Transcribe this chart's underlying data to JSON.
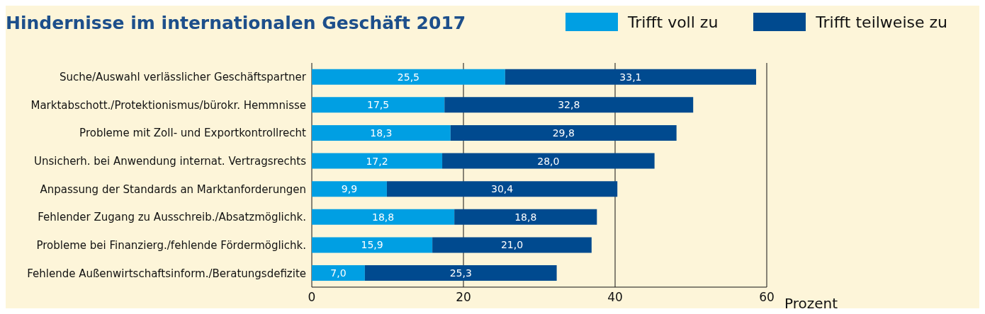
{
  "chart_data": {
    "type": "bar",
    "orientation": "horizontal",
    "stacked": true,
    "title": "Hindernisse im internationalen Geschäft 2017",
    "xlabel": "Prozent",
    "categories": [
      "Suche/Auswahl verlässlicher Geschäftspartner",
      "Marktabschott./Protektionismus/bürokr. Hemmnisse",
      "Probleme mit Zoll- und Exportkontrollrecht",
      "Unsicherh. bei Anwendung internat. Vertragsrechts",
      "Anpassung der Standards an Marktanforderungen",
      "Fehlender Zugang zu Ausschreib./Absatzmöglichk.",
      "Probleme bei Finanzierg./fehlende Fördermöglichk.",
      "Fehlende Außenwirtschaftsinform./Beratungsdefizite"
    ],
    "series": [
      {
        "name": "Trifft voll zu",
        "color": "#009fe3",
        "values": [
          25.5,
          17.5,
          18.3,
          17.2,
          9.9,
          18.8,
          15.9,
          7.0
        ],
        "value_labels": [
          "25,5",
          "17,5",
          "18,3",
          "17,2",
          "9,9",
          "18,8",
          "15,9",
          "7,0"
        ]
      },
      {
        "name": "Trifft teilweise zu",
        "color": "#004a8f",
        "values": [
          33.1,
          32.8,
          29.8,
          28.0,
          30.4,
          18.8,
          21.0,
          25.3
        ],
        "value_labels": [
          "33,1",
          "32,8",
          "29,8",
          "28,0",
          "30,4",
          "18,8",
          "21,0",
          "25,3"
        ]
      }
    ],
    "xlim": [
      0,
      60
    ],
    "xticks": [
      0,
      20,
      40,
      60
    ],
    "grid": "x",
    "legend": "top right"
  }
}
